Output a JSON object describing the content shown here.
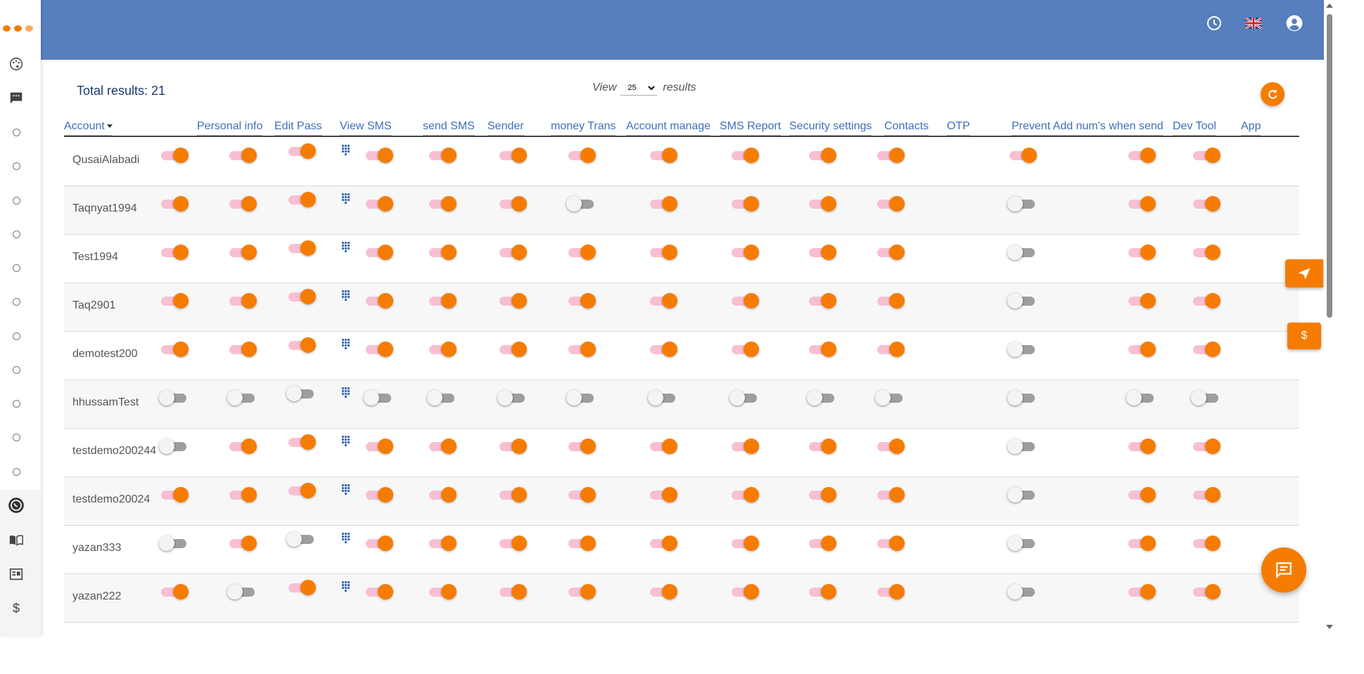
{
  "header": {
    "icons": [
      "clock-icon",
      "uk-flag-icon",
      "account-circle-icon"
    ]
  },
  "sidebar": {
    "items": [
      "palette-icon",
      "chat-icon",
      "circle",
      "circle",
      "circle",
      "circle",
      "circle",
      "circle",
      "circle",
      "circle",
      "circle",
      "circle",
      "circle",
      "whatsapp-icon",
      "book-icon",
      "dashboard-icon",
      "dollar-icon"
    ]
  },
  "toolbar": {
    "total_label": "Total results: 21",
    "view_label": "View",
    "view_value": "25",
    "view_options": [
      "25"
    ],
    "results_label": "results"
  },
  "table": {
    "columns": [
      {
        "key": "account",
        "label": "Account",
        "sorted": true
      },
      {
        "key": "personal_info",
        "label": "Personal info"
      },
      {
        "key": "edit_pass",
        "label": "Edit Pass"
      },
      {
        "key": "view_sms",
        "label": "View SMS"
      },
      {
        "key": "send_sms",
        "label": "send SMS"
      },
      {
        "key": "sender",
        "label": "Sender"
      },
      {
        "key": "money_trans",
        "label": "money Trans"
      },
      {
        "key": "account_manage",
        "label": "Account manage"
      },
      {
        "key": "sms_report",
        "label": "SMS Report"
      },
      {
        "key": "security_settings",
        "label": "Security settings"
      },
      {
        "key": "contacts",
        "label": "Contacts"
      },
      {
        "key": "otp",
        "label": "OTP"
      },
      {
        "key": "prevent_add",
        "label": "Prevent Add num's when send"
      },
      {
        "key": "dev_tool",
        "label": "Dev Tool"
      },
      {
        "key": "app",
        "label": "App"
      }
    ],
    "rows": [
      {
        "account": "QusaiAlabadi",
        "toggles": [
          true,
          true,
          true,
          true,
          true,
          true,
          true,
          true,
          true,
          true,
          true,
          true,
          true,
          true
        ]
      },
      {
        "account": "Taqnyat1994",
        "toggles": [
          true,
          true,
          true,
          true,
          true,
          true,
          false,
          true,
          true,
          true,
          true,
          false,
          true,
          true
        ]
      },
      {
        "account": "Test1994",
        "toggles": [
          true,
          true,
          true,
          true,
          true,
          true,
          true,
          true,
          true,
          true,
          true,
          false,
          true,
          true
        ]
      },
      {
        "account": "Taq2901",
        "toggles": [
          true,
          true,
          true,
          true,
          true,
          true,
          true,
          true,
          true,
          true,
          true,
          false,
          true,
          true
        ]
      },
      {
        "account": "demotest200",
        "toggles": [
          true,
          true,
          true,
          true,
          true,
          true,
          true,
          true,
          true,
          true,
          true,
          false,
          true,
          true
        ]
      },
      {
        "account": "hhussamTest",
        "toggles": [
          false,
          false,
          false,
          false,
          false,
          false,
          false,
          false,
          false,
          false,
          false,
          false,
          false,
          false
        ]
      },
      {
        "account": "testdemo200244",
        "toggles": [
          false,
          true,
          true,
          true,
          true,
          true,
          true,
          true,
          true,
          true,
          true,
          false,
          true,
          true
        ]
      },
      {
        "account": "testdemo20024",
        "toggles": [
          true,
          true,
          true,
          true,
          true,
          true,
          true,
          true,
          true,
          true,
          true,
          false,
          true,
          true
        ]
      },
      {
        "account": "yazan333",
        "toggles": [
          false,
          true,
          false,
          true,
          true,
          true,
          true,
          true,
          true,
          true,
          true,
          false,
          true,
          true
        ]
      },
      {
        "account": "yazan222",
        "toggles": [
          true,
          false,
          true,
          true,
          true,
          true,
          true,
          true,
          true,
          true,
          true,
          false,
          true,
          true
        ]
      }
    ]
  },
  "floating": {
    "send_icon": "send-icon",
    "dollar_label": "$",
    "chat_icon": "chat-icon"
  },
  "colors": {
    "header_bg": "#577ebd",
    "accent": "#f57c00",
    "link": "#3f6eb9",
    "track_on": "#f8bfd2",
    "track_off": "#9e9e9e"
  }
}
